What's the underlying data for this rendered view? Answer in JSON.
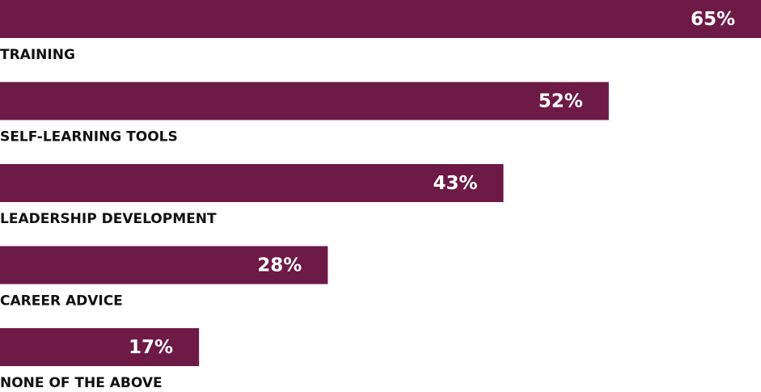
{
  "chart_data": {
    "type": "bar",
    "orientation": "horizontal",
    "categories": [
      "TRAINING",
      "SELF-LEARNING TOOLS",
      "LEADERSHIP DEVELOPMENT",
      "CAREER ADVICE",
      "NONE OF THE ABOVE"
    ],
    "values": [
      65,
      52,
      43,
      28,
      17
    ],
    "value_labels": [
      "65%",
      "52%",
      "43%",
      "28%",
      "17%"
    ],
    "color": "#6d1a47"
  }
}
